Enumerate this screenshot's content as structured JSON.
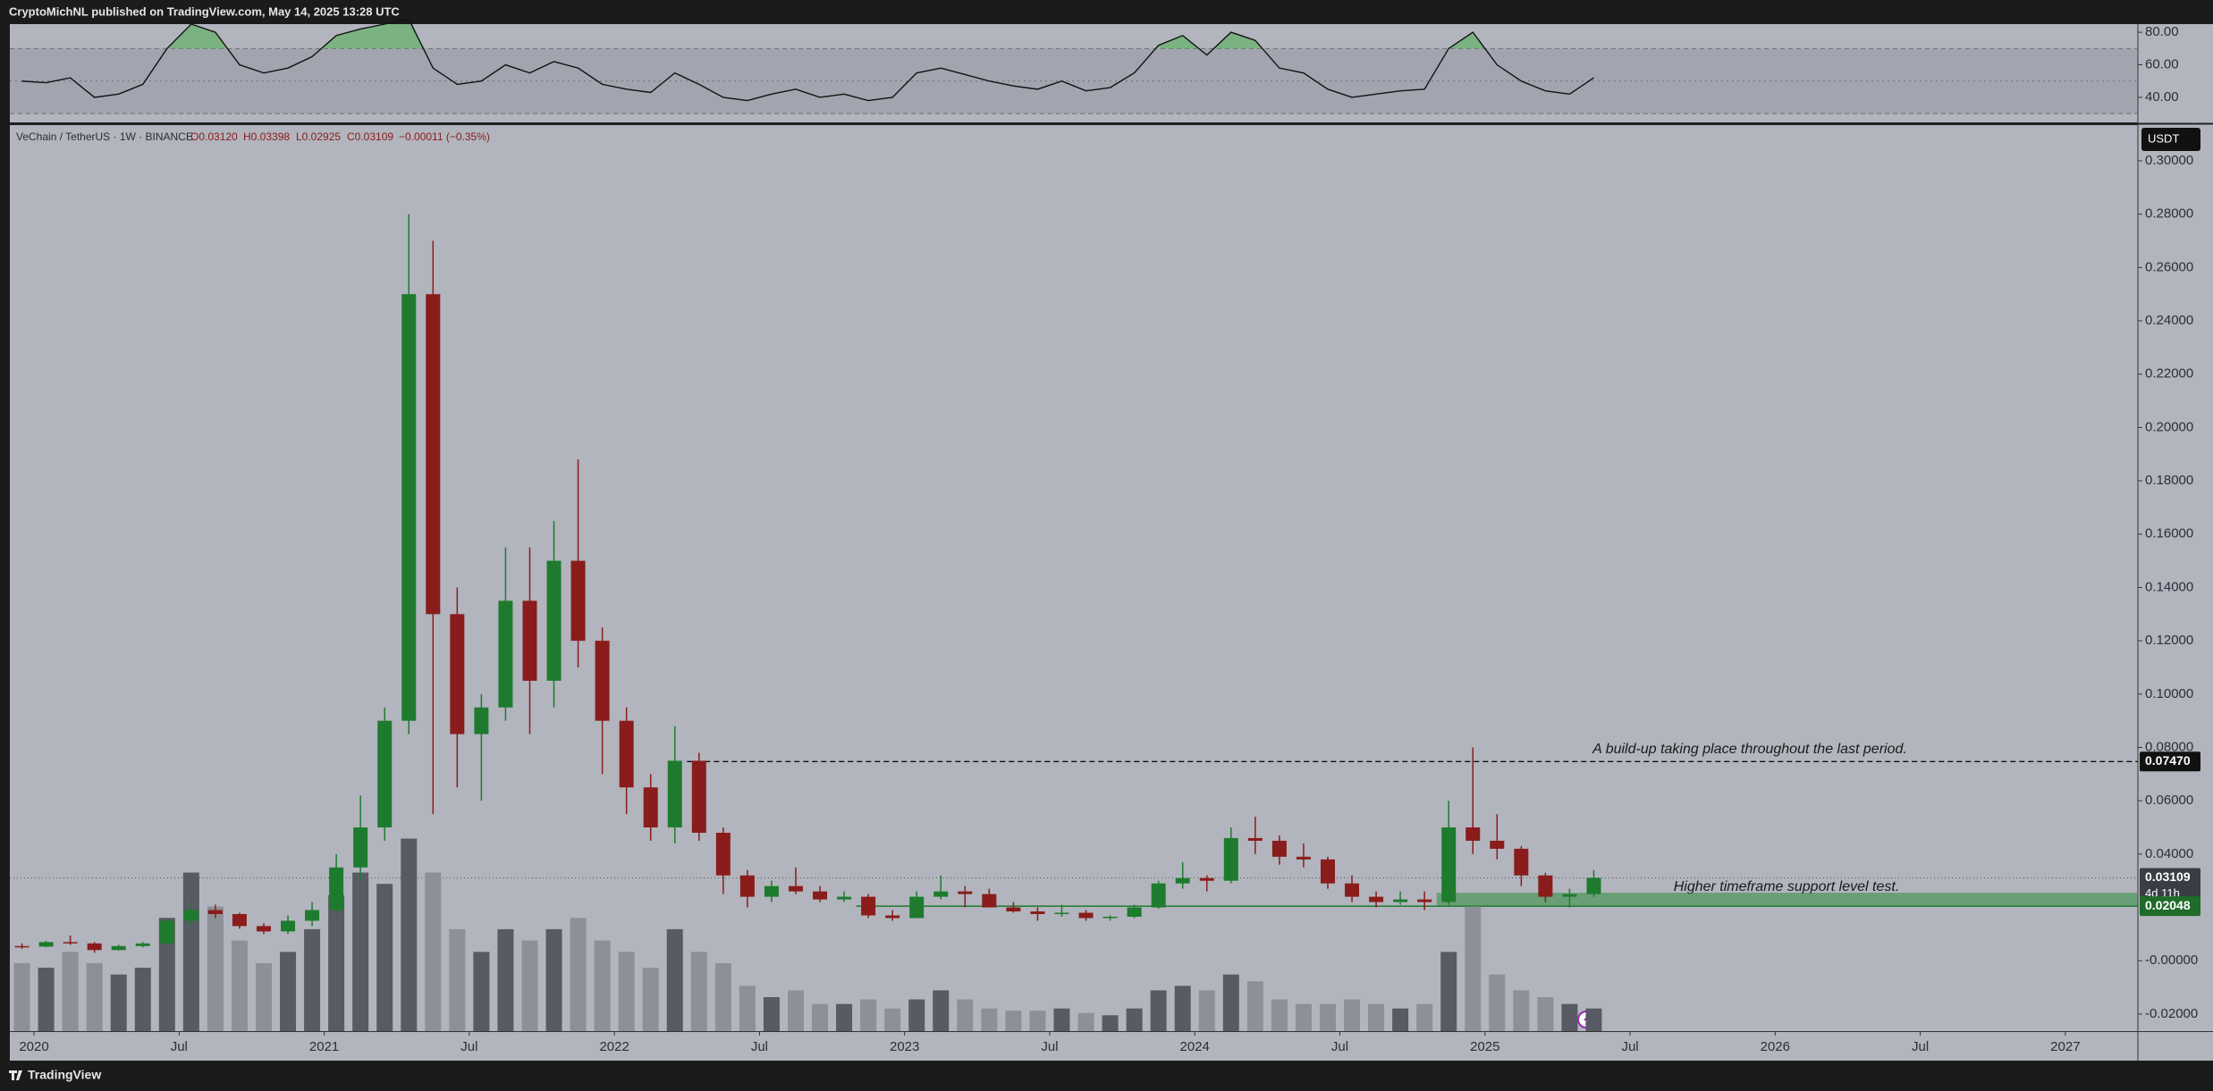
{
  "header": "CryptoMichNL published on TradingView.com, May 14, 2025 13:28 UTC",
  "footer": "TradingView",
  "chart_data": {
    "type": "candlestick",
    "legend": {
      "symbol": "VeChain / TetherUS · 1W · BINANCE",
      "open": "O0.03120",
      "high": "H0.03398",
      "low": "L0.02925",
      "close": "C0.03109",
      "change": "−0.00011 (−0.35%)"
    },
    "currency": "USDT",
    "annotations": [
      "A build-up taking place throughout the last period.",
      "Higher timeframe support level test."
    ],
    "up_color": "#1e7b2e",
    "down_color": "#8a1c1c",
    "x": [
      "2019-12",
      "2020-01",
      "2020-02",
      "2020-03",
      "2020-04",
      "2020-05",
      "2020-06",
      "2020-07",
      "2020-08",
      "2020-09",
      "2020-10",
      "2020-11",
      "2020-12",
      "2021-01",
      "2021-02",
      "2021-03",
      "2021-04",
      "2021-05",
      "2021-06",
      "2021-07",
      "2021-08",
      "2021-09",
      "2021-10",
      "2021-11",
      "2021-12",
      "2022-01",
      "2022-02",
      "2022-03",
      "2022-04",
      "2022-05",
      "2022-06",
      "2022-07",
      "2022-08",
      "2022-09",
      "2022-10",
      "2022-11",
      "2022-12",
      "2023-01",
      "2023-02",
      "2023-03",
      "2023-04",
      "2023-05",
      "2023-06",
      "2023-07",
      "2023-08",
      "2023-09",
      "2023-10",
      "2023-11",
      "2023-12",
      "2024-01",
      "2024-02",
      "2024-03",
      "2024-04",
      "2024-05",
      "2024-06",
      "2024-07",
      "2024-08",
      "2024-09",
      "2024-10",
      "2024-11",
      "2024-12",
      "2025-01",
      "2025-02",
      "2025-03",
      "2025-04",
      "2025-05"
    ],
    "open": [
      0.0055,
      0.0053,
      0.007,
      0.0065,
      0.004,
      0.0055,
      0.0065,
      0.015,
      0.019,
      0.0175,
      0.013,
      0.011,
      0.015,
      0.019,
      0.035,
      0.05,
      0.09,
      0.25,
      0.13,
      0.085,
      0.095,
      0.135,
      0.105,
      0.15,
      0.12,
      0.09,
      0.065,
      0.05,
      0.075,
      0.048,
      0.032,
      0.024,
      0.028,
      0.026,
      0.023,
      0.024,
      0.017,
      0.016,
      0.024,
      0.026,
      0.025,
      0.02,
      0.0185,
      0.0175,
      0.018,
      0.016,
      0.0165,
      0.02,
      0.029,
      0.031,
      0.03,
      0.046,
      0.045,
      0.039,
      0.038,
      0.029,
      0.024,
      0.022,
      0.023,
      0.022,
      0.05,
      0.045,
      0.042,
      0.032,
      0.024,
      0.025
    ],
    "high": [
      0.0065,
      0.0075,
      0.0095,
      0.007,
      0.006,
      0.007,
      0.016,
      0.022,
      0.021,
      0.018,
      0.014,
      0.017,
      0.022,
      0.04,
      0.062,
      0.095,
      0.28,
      0.27,
      0.14,
      0.1,
      0.155,
      0.155,
      0.165,
      0.188,
      0.125,
      0.095,
      0.07,
      0.088,
      0.078,
      0.05,
      0.034,
      0.03,
      0.035,
      0.028,
      0.026,
      0.025,
      0.019,
      0.026,
      0.032,
      0.028,
      0.027,
      0.022,
      0.02,
      0.021,
      0.019,
      0.017,
      0.021,
      0.03,
      0.037,
      0.032,
      0.05,
      0.054,
      0.047,
      0.044,
      0.039,
      0.032,
      0.026,
      0.026,
      0.026,
      0.06,
      0.08,
      0.055,
      0.043,
      0.033,
      0.027,
      0.034
    ],
    "low": [
      0.0045,
      0.005,
      0.006,
      0.003,
      0.0038,
      0.005,
      0.0062,
      0.013,
      0.016,
      0.012,
      0.01,
      0.01,
      0.013,
      0.018,
      0.03,
      0.045,
      0.085,
      0.055,
      0.065,
      0.06,
      0.09,
      0.085,
      0.095,
      0.11,
      0.07,
      0.055,
      0.045,
      0.044,
      0.045,
      0.025,
      0.02,
      0.022,
      0.025,
      0.022,
      0.022,
      0.016,
      0.015,
      0.016,
      0.023,
      0.02,
      0.02,
      0.018,
      0.015,
      0.0165,
      0.015,
      0.015,
      0.016,
      0.0195,
      0.027,
      0.026,
      0.029,
      0.04,
      0.036,
      0.035,
      0.027,
      0.022,
      0.02,
      0.021,
      0.019,
      0.021,
      0.04,
      0.038,
      0.028,
      0.022,
      0.02,
      0.024
    ],
    "close": [
      0.0053,
      0.007,
      0.0065,
      0.004,
      0.0055,
      0.0065,
      0.015,
      0.019,
      0.0175,
      0.013,
      0.011,
      0.015,
      0.019,
      0.035,
      0.05,
      0.09,
      0.25,
      0.13,
      0.085,
      0.095,
      0.135,
      0.105,
      0.15,
      0.12,
      0.09,
      0.065,
      0.05,
      0.075,
      0.048,
      0.032,
      0.024,
      0.028,
      0.026,
      0.023,
      0.024,
      0.017,
      0.016,
      0.024,
      0.026,
      0.025,
      0.02,
      0.0185,
      0.0175,
      0.018,
      0.016,
      0.0165,
      0.02,
      0.029,
      0.031,
      0.03,
      0.046,
      0.045,
      0.039,
      0.038,
      0.029,
      0.024,
      0.022,
      0.023,
      0.022,
      0.05,
      0.045,
      0.042,
      0.032,
      0.024,
      0.025,
      0.0311
    ],
    "volume": [
      30,
      28,
      35,
      30,
      25,
      28,
      50,
      70,
      55,
      40,
      30,
      35,
      45,
      60,
      70,
      65,
      85,
      70,
      45,
      35,
      45,
      40,
      45,
      50,
      40,
      35,
      28,
      45,
      35,
      30,
      20,
      15,
      18,
      12,
      12,
      14,
      10,
      14,
      18,
      14,
      10,
      9,
      9,
      10,
      8,
      7,
      10,
      18,
      20,
      18,
      25,
      22,
      14,
      12,
      12,
      14,
      12,
      10,
      12,
      35,
      55,
      25,
      18,
      15,
      12,
      10
    ],
    "volume_ylim": [
      0,
      400
    ],
    "xlim": [
      "2019-12",
      "2027-04"
    ],
    "xticks": [
      {
        "value": "2020-01",
        "label": "2020"
      },
      {
        "value": "2020-07",
        "label": "Jul"
      },
      {
        "value": "2021-01",
        "label": "2021"
      },
      {
        "value": "2021-07",
        "label": "Jul"
      },
      {
        "value": "2022-01",
        "label": "2022"
      },
      {
        "value": "2022-07",
        "label": "Jul"
      },
      {
        "value": "2023-01",
        "label": "2023"
      },
      {
        "value": "2023-07",
        "label": "Jul"
      },
      {
        "value": "2024-01",
        "label": "2024"
      },
      {
        "value": "2024-07",
        "label": "Jul"
      },
      {
        "value": "2025-01",
        "label": "2025"
      },
      {
        "value": "2025-07",
        "label": "Jul"
      },
      {
        "value": "2026-01",
        "label": "2026"
      },
      {
        "value": "2026-07",
        "label": "Jul"
      },
      {
        "value": "2027-01",
        "label": "2027"
      }
    ],
    "ylim": [
      -0.0264,
      0.3134
    ],
    "yticks": [
      {
        "value": 0.3,
        "label": "0.30000"
      },
      {
        "value": 0.28,
        "label": "0.28000"
      },
      {
        "value": 0.26,
        "label": "0.26000"
      },
      {
        "value": 0.24,
        "label": "0.24000"
      },
      {
        "value": 0.22,
        "label": "0.22000"
      },
      {
        "value": 0.2,
        "label": "0.20000"
      },
      {
        "value": 0.18,
        "label": "0.18000"
      },
      {
        "value": 0.16,
        "label": "0.16000"
      },
      {
        "value": 0.14,
        "label": "0.14000"
      },
      {
        "value": 0.12,
        "label": "0.12000"
      },
      {
        "value": 0.1,
        "label": "0.10000"
      },
      {
        "value": 0.08,
        "label": "0.08000"
      },
      {
        "value": 0.06,
        "label": "0.06000"
      },
      {
        "value": 0.04,
        "label": "0.04000"
      },
      {
        "value": 0,
        "label": "-0.00000"
      },
      {
        "value": -0.02,
        "label": "-0.02000"
      }
    ],
    "resistance": {
      "from": "2022-04",
      "price": {
        "value": 0.0747,
        "label": "0.07470"
      }
    },
    "last_price": {
      "value": 0.03109,
      "label": "0.03109",
      "countdown": "4d 11h"
    },
    "support": {
      "from": "2024-11",
      "line_from": "2022-11",
      "low": {
        "value": 0.02048,
        "label": "0.02048"
      },
      "high": 0.0255
    },
    "rsi": {
      "color": "#111111",
      "values": [
        50,
        49,
        52,
        40,
        42,
        48,
        70,
        85,
        80,
        60,
        55,
        58,
        65,
        78,
        82,
        85,
        88,
        58,
        48,
        50,
        60,
        55,
        62,
        58,
        48,
        45,
        43,
        55,
        48,
        40,
        38,
        42,
        45,
        40,
        42,
        38,
        40,
        55,
        58,
        54,
        50,
        47,
        45,
        50,
        44,
        46,
        55,
        72,
        78,
        66,
        80,
        75,
        58,
        55,
        45,
        40,
        42,
        44,
        45,
        70,
        80,
        60,
        50,
        44,
        42,
        52
      ],
      "ylim": [
        24.6,
        85
      ],
      "yticks": [
        {
          "value": 80,
          "label": "80.00"
        },
        {
          "value": 60,
          "label": "60.00"
        },
        {
          "value": 40,
          "label": "40.00"
        }
      ],
      "bands": [
        70,
        50,
        30
      ]
    }
  }
}
